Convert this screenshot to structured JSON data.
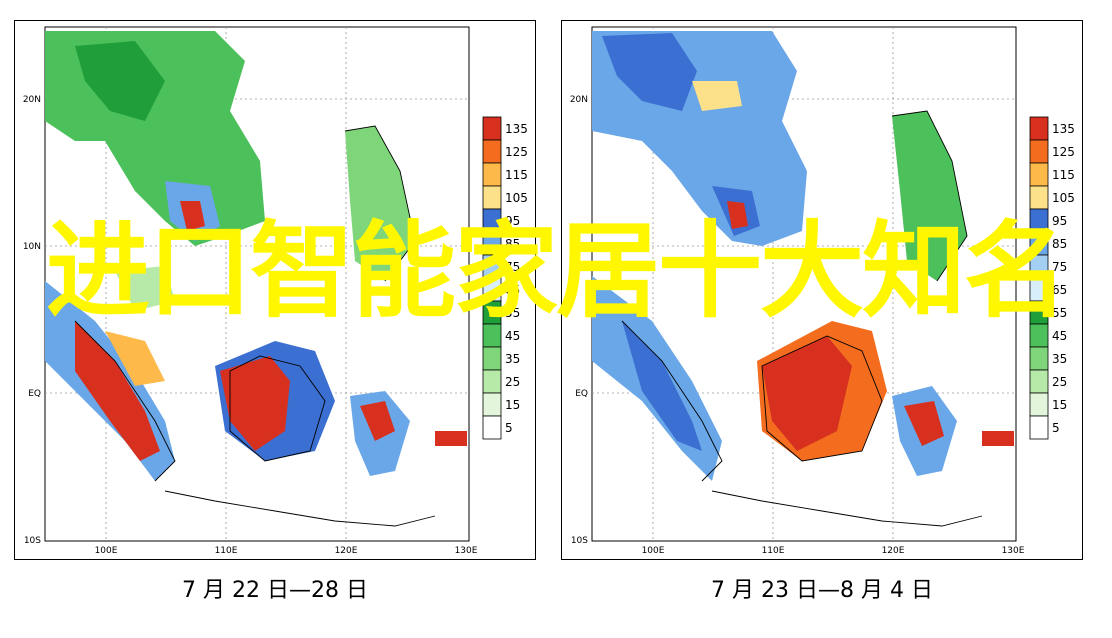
{
  "legend": {
    "levels": [
      "135",
      "125",
      "115",
      "105",
      "95",
      "85",
      "75",
      "65",
      "55",
      "45",
      "35",
      "25",
      "15",
      "5"
    ],
    "colors": [
      "#d7301f",
      "#f46d1f",
      "#fdb94a",
      "#fde08a",
      "#3b6fd1",
      "#6aa7e8",
      "#a3d0f2",
      "#d8eefb",
      "#1f9e3a",
      "#4cc05a",
      "#7fd67a",
      "#b7e9a8",
      "#e3f6dc",
      "#ffffff"
    ]
  },
  "axes": {
    "lat_labels": [
      "20N",
      "10N",
      "EQ",
      "10S"
    ],
    "lon_labels": [
      "100E",
      "110E",
      "120E",
      "130E"
    ]
  },
  "panels": [
    {
      "id": "left",
      "caption": "7 月 22 日—28 日"
    },
    {
      "id": "right",
      "caption": "7 月 23 日—8 月 4 日"
    }
  ],
  "overlay_title": "进口智能家居十大知名"
}
